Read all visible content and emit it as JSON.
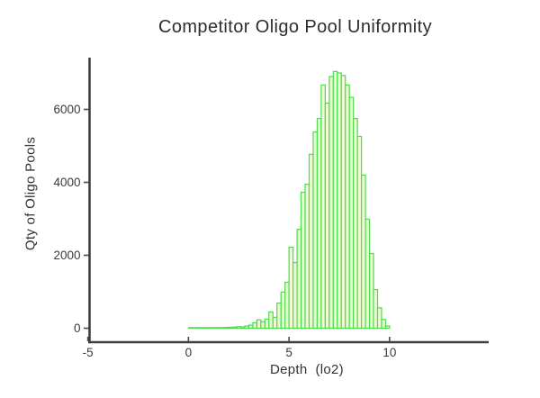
{
  "chart_data": {
    "type": "bar",
    "subtype": "histogram",
    "title": "Competitor Oligo Pool Uniformity",
    "xlabel": "Depth  (lo2)",
    "ylabel": "Qty of Oligo Pools",
    "xlim": [
      -5,
      15
    ],
    "ylim": [
      0,
      7400
    ],
    "grid": false,
    "legend": false,
    "x_ticks": {
      "values": [
        -5,
        0,
        5,
        10
      ],
      "labels": [
        "-5",
        "0",
        "5",
        "10"
      ]
    },
    "y_ticks": {
      "values": [
        0,
        2000,
        4000,
        6000
      ],
      "labels": [
        "0",
        "2000",
        "4000",
        "6000"
      ]
    },
    "bins": {
      "start": 0.0,
      "width": 0.2,
      "counts": [
        12,
        8,
        10,
        9,
        11,
        13,
        16,
        14,
        18,
        22,
        26,
        30,
        45,
        35,
        60,
        85,
        150,
        230,
        175,
        250,
        445,
        300,
        690,
        990,
        1260,
        2220,
        1800,
        2710,
        3730,
        3950,
        4770,
        5380,
        5750,
        6670,
        6170,
        6900,
        7040,
        7000,
        6930,
        6670,
        6330,
        5750,
        5260,
        4200,
        2990,
        2050,
        1060,
        560,
        240,
        60
      ]
    },
    "colors": {
      "bar_fill": "#edfbd2",
      "bar_stroke": "#4cdc4e",
      "axis_color": "#3f3f3f",
      "tick_color": "#4a4a4a",
      "text_color": "#3a3a3a",
      "title_color": "#2d2d2d",
      "background": "#ffffff"
    }
  }
}
